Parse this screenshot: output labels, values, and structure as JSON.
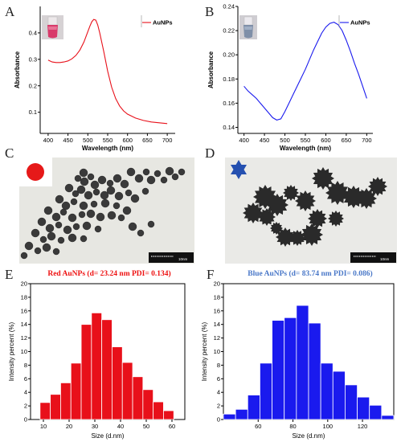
{
  "panel_labels": [
    "A",
    "B",
    "C",
    "D",
    "E",
    "F"
  ],
  "colors": {
    "red": "#e8101a",
    "blue": "#1a1aee",
    "blue_title": "#4a78c8",
    "red_title": "#ee1111",
    "star": "#2550b0"
  },
  "chart_data": [
    {
      "id": "A",
      "type": "line",
      "xlabel": "Wavelength (nm)",
      "ylabel": "Absorbance",
      "xlim": [
        380,
        720
      ],
      "ylim": [
        0.02,
        0.5
      ],
      "xticks": [
        "400",
        "450",
        "500",
        "550",
        "600",
        "650",
        "700"
      ],
      "yticks": [
        "0.1",
        "0.2",
        "0.3",
        "0.4"
      ],
      "series": [
        {
          "name": "AuNPs",
          "x": [
            400,
            410,
            420,
            430,
            440,
            450,
            460,
            470,
            480,
            490,
            500,
            505,
            510,
            515,
            520,
            525,
            530,
            540,
            550,
            560,
            570,
            580,
            590,
            600,
            620,
            640,
            660,
            680,
            700
          ],
          "y": [
            0.297,
            0.29,
            0.288,
            0.288,
            0.29,
            0.294,
            0.302,
            0.315,
            0.335,
            0.365,
            0.405,
            0.425,
            0.442,
            0.451,
            0.448,
            0.43,
            0.4,
            0.33,
            0.255,
            0.195,
            0.152,
            0.124,
            0.105,
            0.093,
            0.078,
            0.069,
            0.063,
            0.06,
            0.057
          ]
        }
      ],
      "legend_position": "top-right"
    },
    {
      "id": "B",
      "type": "line",
      "xlabel": "Wavelength (nm)",
      "ylabel": "Absorbance",
      "xlim": [
        385,
        715
      ],
      "ylim": [
        0.135,
        0.24
      ],
      "xticks": [
        "400",
        "450",
        "500",
        "550",
        "600",
        "650",
        "700"
      ],
      "yticks": [
        "0.14",
        "0.16",
        "0.18",
        "0.20",
        "0.22",
        "0.24"
      ],
      "series": [
        {
          "name": "AuNPs",
          "x": [
            400,
            410,
            420,
            430,
            440,
            450,
            460,
            470,
            480,
            490,
            500,
            510,
            520,
            530,
            540,
            550,
            560,
            570,
            580,
            590,
            600,
            610,
            620,
            630,
            640,
            650,
            660,
            670,
            680,
            690,
            700
          ],
          "y": [
            0.174,
            0.17,
            0.167,
            0.164,
            0.16,
            0.156,
            0.152,
            0.148,
            0.146,
            0.147,
            0.153,
            0.16,
            0.167,
            0.174,
            0.181,
            0.188,
            0.196,
            0.204,
            0.211,
            0.218,
            0.223,
            0.226,
            0.227,
            0.225,
            0.22,
            0.212,
            0.203,
            0.193,
            0.184,
            0.174,
            0.164
          ]
        }
      ],
      "legend_position": "top-right"
    },
    {
      "id": "E",
      "type": "bar",
      "title": "Red AuNPs (d= 23.24 nm PDI= 0.134)",
      "xlabel": "Size (d.nm)",
      "ylabel": "Intensity percent (%)",
      "xlim": [
        5,
        65
      ],
      "ylim": [
        0,
        20
      ],
      "xticks": [
        "10",
        "20",
        "30",
        "40",
        "50",
        "60"
      ],
      "yticks": [
        "0",
        "2",
        "4",
        "6",
        "8",
        "10",
        "12",
        "14",
        "16",
        "18",
        "20"
      ],
      "bin_edges": [
        8.7,
        12.7,
        16.7,
        20.7,
        24.7,
        28.7,
        32.7,
        36.7,
        40.7,
        44.7,
        48.7,
        52.7,
        56.7,
        60.7
      ],
      "values": [
        2.5,
        3.7,
        5.4,
        8.3,
        14.0,
        15.7,
        14.7,
        10.7,
        8.4,
        6.3,
        4.4,
        2.6,
        1.3
      ]
    },
    {
      "id": "F",
      "type": "bar",
      "title": "Blue AuNPs (d= 83.74 nm PDI= 0.086)",
      "xlabel": "Size (d.nm)",
      "ylabel": "Intensity percent (%)",
      "xlim": [
        40,
        138
      ],
      "ylim": [
        0,
        20
      ],
      "xticks": [
        "60",
        "80",
        "100",
        "120"
      ],
      "yticks": [
        "0",
        "2",
        "4",
        "6",
        "8",
        "10",
        "12",
        "14",
        "16",
        "18",
        "20"
      ],
      "bin_edges": [
        40,
        47,
        54,
        61,
        68,
        75,
        82,
        89,
        96,
        103,
        110,
        117,
        124,
        131,
        138
      ],
      "values": [
        0.8,
        1.5,
        3.6,
        8.3,
        14.6,
        15.0,
        16.8,
        14.2,
        8.3,
        7.1,
        5.1,
        3.3,
        2.1,
        0.6
      ]
    }
  ],
  "scale_bar_text_c": "10nm",
  "scale_bar_text_d": "10nm"
}
